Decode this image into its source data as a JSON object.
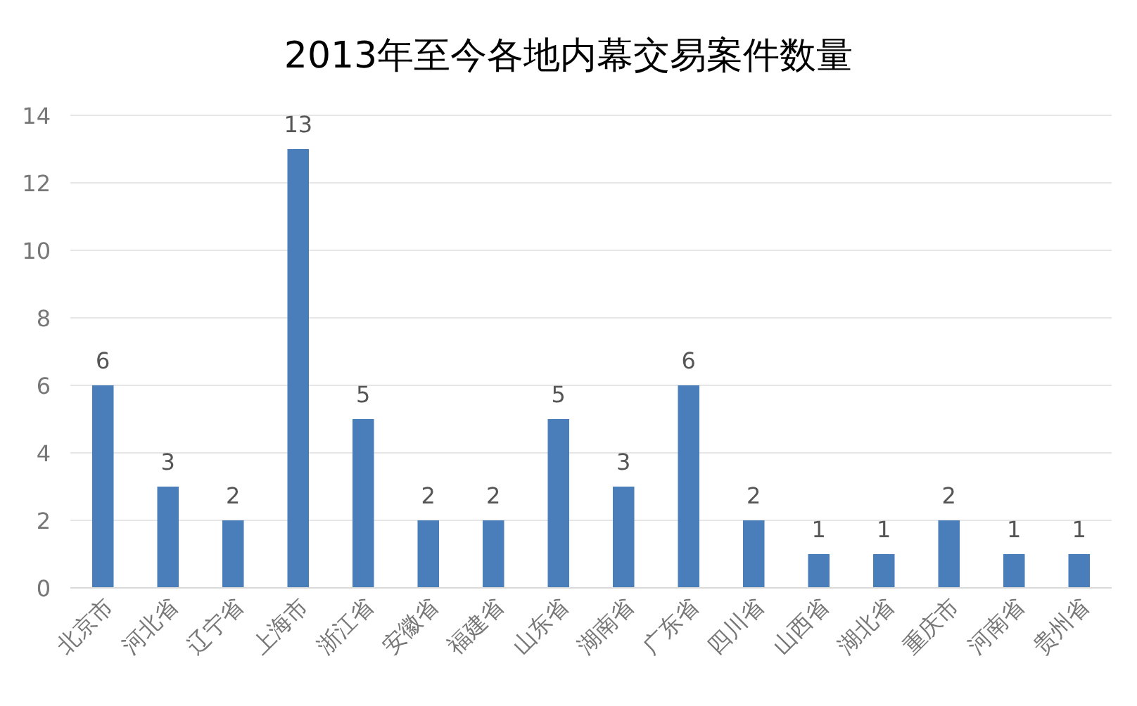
{
  "chart_data": {
    "type": "bar",
    "title": "2013年至今各地内幕交易案件数量",
    "categories": [
      "北京市",
      "河北省",
      "辽宁省",
      "上海市",
      "浙江省",
      "安徽省",
      "福建省",
      "山东省",
      "湖南省",
      "广东省",
      "四川省",
      "山西省",
      "湖北省",
      "重庆市",
      "河南省",
      "贵州省"
    ],
    "values": [
      6,
      3,
      2,
      13,
      5,
      2,
      2,
      5,
      3,
      6,
      2,
      1,
      1,
      2,
      1,
      1
    ],
    "color": "#4a7ebb",
    "ylim": [
      0,
      14
    ],
    "yticks": [
      0,
      2,
      4,
      6,
      8,
      10,
      12,
      14
    ],
    "grid": "y",
    "data_labels": true
  }
}
